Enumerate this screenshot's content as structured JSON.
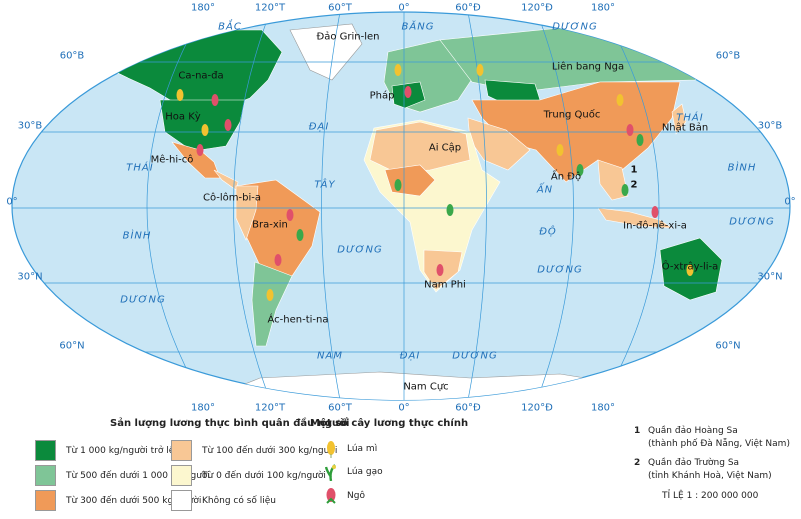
{
  "colors": {
    "ocean": "#c9e6f5",
    "grid": "#3a9ad9",
    "dark_green": "#0b8a3c",
    "light_green": "#7fc597",
    "orange": "#f09a58",
    "peach": "#f8c795",
    "pale_yellow": "#fcf7cf",
    "no_data": "#ffffff"
  },
  "grid_labels": {
    "top": [
      "180°",
      "120°T",
      "60°T",
      "0°",
      "60°Đ",
      "120°Đ",
      "180°"
    ],
    "bottom": [
      "180°",
      "120°T",
      "60°T",
      "0°",
      "60°Đ",
      "120°Đ",
      "180°"
    ],
    "left": [
      "60°B",
      "30°B",
      "0°",
      "30°N",
      "60°N"
    ],
    "right": [
      "60°B",
      "30°B",
      "0°",
      "30°N",
      "60°N"
    ]
  },
  "ocean_labels": [
    "BẮC",
    "BĂNG",
    "DƯƠNG",
    "THÁI",
    "BÌNH",
    "DƯƠNG",
    "THÁI",
    "BÌNH",
    "DƯƠNG",
    "ĐẠI",
    "TÂY",
    "DƯƠNG",
    "ẤN",
    "ĐỘ",
    "DƯƠNG",
    "NAM",
    "ĐẠI",
    "DƯƠNG"
  ],
  "places": [
    "Đảo Grin-len",
    "Ca-na-đa",
    "Liên bang Nga",
    "Pháp",
    "Hoa Kỳ",
    "Trung Quốc",
    "Nhật Bản",
    "Ai Cập",
    "Mê-hi-cô",
    "Ấn Độ",
    "Cô-lôm-bi-a",
    "Bra-xin",
    "In-đô-nê-xi-a",
    "Ô-xtrây-li-a",
    "Nam Phi",
    "Ác-hen-ti-na",
    "Nam Cực"
  ],
  "island_markers": [
    "1",
    "2"
  ],
  "legend": {
    "title": "Sản lượng lương thực bình quân đầu người",
    "items": [
      {
        "label": "Từ 1 000 kg/người trở lên",
        "color": "#0b8a3c"
      },
      {
        "label": "Từ 500 đến dưới 1 000 kg/người",
        "color": "#7fc597"
      },
      {
        "label": "Từ 300 đến dưới 500 kg/người",
        "color": "#f09a58"
      },
      {
        "label": "Từ 100 đến dưới 300 kg/người",
        "color": "#f8c795"
      },
      {
        "label": "Từ 0 đến dưới 100 kg/người",
        "color": "#fcf7cf"
      },
      {
        "label": "Không có số liệu",
        "color": "#ffffff"
      }
    ],
    "crops_title": "Một số cây lương thực chính",
    "crops": [
      {
        "label": "Lúa mì",
        "icon": "wheat-icon"
      },
      {
        "label": "Lúa gạo",
        "icon": "rice-icon"
      },
      {
        "label": "Ngô",
        "icon": "corn-icon"
      }
    ]
  },
  "notes": [
    {
      "num": "1",
      "line1": "Quần đảo Hoàng Sa",
      "line2": "(thành phố Đà Nẵng, Việt Nam)"
    },
    {
      "num": "2",
      "line1": "Quần đảo Trường Sa",
      "line2": "(tỉnh Khánh Hoà, Việt Nam)"
    }
  ],
  "scale": "TỈ LỆ 1 : 200 000 000"
}
